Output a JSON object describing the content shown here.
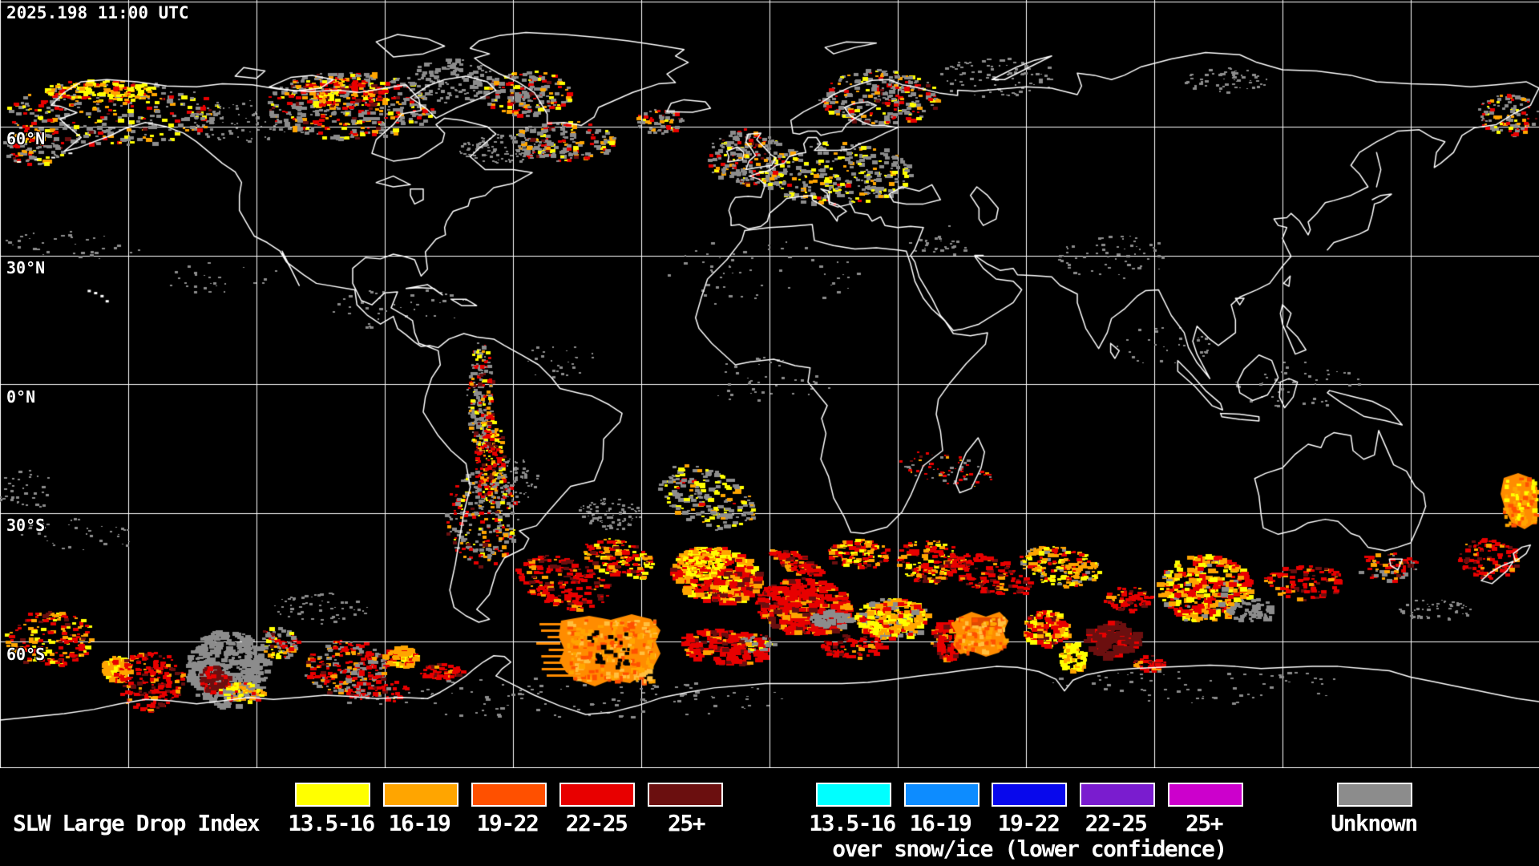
{
  "header": {
    "timestamp": "2025.198 11:00 UTC"
  },
  "map": {
    "lat_labels": [
      {
        "text": "60°N",
        "lat": 60
      },
      {
        "text": "30°N",
        "lat": 30
      },
      {
        "text": "0°N",
        "lat": 0
      },
      {
        "text": "30°S",
        "lat": -30
      },
      {
        "text": "60°S",
        "lat": -60
      }
    ],
    "grid": {
      "lon_step_deg": 30,
      "lat_step_deg": 30,
      "color": "#FFFFFF"
    },
    "background": "#000000",
    "coastline_color": "#FFFFFF"
  },
  "legend": {
    "title": "SLW Large Drop Index",
    "groups": [
      {
        "id": "standard",
        "items": [
          {
            "label": "13.5-16",
            "color": "#FFFF00"
          },
          {
            "label": "16-19",
            "color": "#FFA500"
          },
          {
            "label": "19-22",
            "color": "#FF5000"
          },
          {
            "label": "22-25",
            "color": "#E80000"
          },
          {
            "label": "25+",
            "color": "#6B0F0F"
          }
        ]
      },
      {
        "id": "snow_ice",
        "caption": "over snow/ice (lower confidence)",
        "items": [
          {
            "label": "13.5-16",
            "color": "#00FFFF"
          },
          {
            "label": "16-19",
            "color": "#0D8CFF"
          },
          {
            "label": "19-22",
            "color": "#0808EC"
          },
          {
            "label": "22-25",
            "color": "#7A1CCF"
          },
          {
            "label": "25+",
            "color": "#CC00CC"
          }
        ]
      },
      {
        "id": "unknown",
        "items": [
          {
            "label": "Unknown",
            "color": "#8C8C8C"
          }
        ]
      }
    ]
  }
}
